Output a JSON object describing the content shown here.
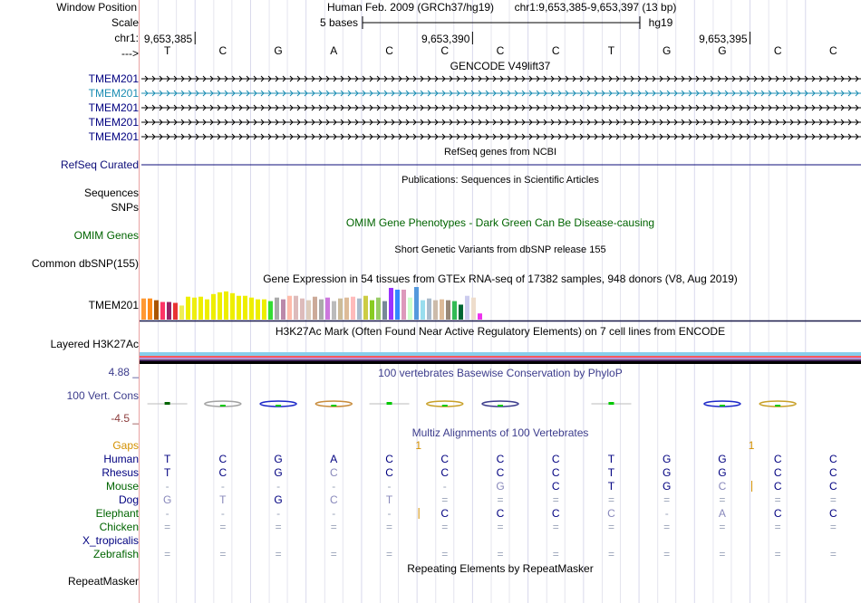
{
  "left_labels": [
    {
      "text": "Window Position",
      "color": "#000000"
    },
    {
      "text": "Scale",
      "color": "#000000"
    },
    {
      "text": "chr1:",
      "color": "#000000"
    },
    {
      "text": "--->",
      "color": "#000000"
    },
    {
      "text": "TMEM201",
      "color": "#000080"
    },
    {
      "text": "TMEM201",
      "color": "#1a8cb2"
    },
    {
      "text": "TMEM201",
      "color": "#000080"
    },
    {
      "text": "TMEM201",
      "color": "#000080"
    },
    {
      "text": "TMEM201",
      "color": "#000080"
    },
    {
      "text": "RefSeq Curated",
      "color": "#0c0c78"
    },
    {
      "text": "Sequences",
      "color": "#000000"
    },
    {
      "text": "SNPs",
      "color": "#000000"
    },
    {
      "text": "OMIM Genes",
      "color": "#006400"
    },
    {
      "text": "Common dbSNP(155)",
      "color": "#000000"
    },
    {
      "text": "TMEM201",
      "color": "#000000"
    },
    {
      "text": "Layered H3K27Ac",
      "color": "#000000"
    },
    {
      "text": "4.88 _",
      "color": "#3c3c8c"
    },
    {
      "text": "100 Vert. Cons",
      "color": "#3c3c8c"
    },
    {
      "text": "-4.5 _",
      "color": "#8c3c3c"
    },
    {
      "text": "Gaps",
      "color": "#d39000"
    },
    {
      "text": "Human",
      "color": "#000080"
    },
    {
      "text": "Rhesus",
      "color": "#000080"
    },
    {
      "text": "Mouse",
      "color": "#006400"
    },
    {
      "text": "Dog",
      "color": "#000080"
    },
    {
      "text": "Elephant",
      "color": "#006400"
    },
    {
      "text": "Chicken",
      "color": "#006400"
    },
    {
      "text": "X_tropicalis",
      "color": "#000080"
    },
    {
      "text": "Zebrafish",
      "color": "#006400"
    },
    {
      "text": "RepeatMasker",
      "color": "#000000"
    }
  ],
  "header": {
    "assembly": "Human Feb. 2009 (GRCh37/hg19)",
    "region": "chr1:9,653,385-9,653,397 (13 bp)",
    "scale_label": "5 bases",
    "db_label": "hg19"
  },
  "ruler_positions": [
    "9,653,385",
    "9,653,390",
    "9,653,395"
  ],
  "bases": [
    "T",
    "C",
    "G",
    "A",
    "C",
    "C",
    "C",
    "C",
    "T",
    "G",
    "G",
    "C",
    "C"
  ],
  "track_titles": {
    "gencode": "GENCODE V49lift37",
    "refseq": "RefSeq genes from NCBI",
    "publications": "Publications: Sequences in Scientific Articles",
    "omim": "OMIM Gene Phenotypes - Dark Green Can Be Disease-causing",
    "dbsnp": "Short Genetic Variants from dbSNP release 155",
    "gtex": "Gene Expression in 54 tissues from GTEx RNA-seq of 17382 samples, 948 donors (V8, Aug 2019)",
    "h3k27ac": "H3K27Ac Mark (Often Found Near Active Regulatory Elements) on 7 cell lines from ENCODE",
    "phylop": "100 vertebrates Basewise Conservation by PhyloP",
    "multiz": "Multiz Alignments of 100 Vertebrates",
    "repeatmasker": "Repeating Elements by RepeatMasker"
  },
  "gene_track_colors": [
    "#000000",
    "#1a8cb2",
    "#000000",
    "#000000",
    "#000000"
  ],
  "gtex": {
    "values": [
      24,
      24,
      22,
      20,
      20,
      19,
      16,
      26,
      25,
      26,
      23,
      29,
      31,
      32,
      30,
      27,
      27,
      25,
      23,
      23,
      21,
      25,
      23,
      27,
      27,
      24,
      22,
      26,
      23,
      25,
      21,
      24,
      25,
      26,
      24,
      27,
      22,
      25,
      21,
      36,
      34,
      34,
      25,
      37,
      22,
      24,
      22,
      23,
      22,
      21,
      17,
      27,
      25,
      7
    ],
    "colors": [
      "#ff9933",
      "#ff8c1a",
      "#aa5500",
      "#ff3366",
      "#992266",
      "#e83333",
      "#eeee55",
      "#eeee00",
      "#eeee11",
      "#eeee00",
      "#eeee00",
      "#eeee00",
      "#eeee00",
      "#eeee00",
      "#eeee00",
      "#eeee00",
      "#eeee00",
      "#eeee00",
      "#eeee00",
      "#eeee00",
      "#33dd33",
      "#aaaaaa",
      "#bb88aa",
      "#ffbbaa",
      "#ddbbbb",
      "#ddbbbb",
      "#ddccbb",
      "#ccaa99",
      "#aaaaaa",
      "#cc77dd",
      "#bbbbbb",
      "#ccbb99",
      "#ddbb99",
      "#ffbbbb",
      "#aabbcc",
      "#cccc44",
      "#88cc22",
      "#99cc66",
      "#778899",
      "#9933ff",
      "#3388ff",
      "#dd99bb",
      "#ccffcc",
      "#5599dd",
      "#99ddee",
      "#aabbcc",
      "#ccbbaa",
      "#ddbb99",
      "#998877",
      "#33bb55",
      "#006633",
      "#ccccee",
      "#eeddcc",
      "#ee33ee"
    ]
  },
  "h3k27ac_colors": [
    "#87ceeb",
    "#ff5a5a",
    "#a78bfa",
    "#bfa0b0",
    "#5b3c7e",
    "#3c2050",
    "#000000"
  ],
  "phylop_bases": [
    {
      "dir": "flat",
      "color": "#006400",
      "ref": "T"
    },
    {
      "dir": "both",
      "color": "#a2a2a2",
      "ref": "C"
    },
    {
      "dir": "both",
      "color": "#1c28c8",
      "ref": "G"
    },
    {
      "dir": "both",
      "color": "#c88c3c",
      "ref": "A"
    },
    {
      "dir": "flat",
      "color": "#00c800",
      "ref": "C"
    },
    {
      "dir": "both",
      "color": "#c8a028",
      "ref": "C"
    },
    {
      "dir": "both",
      "color": "#3c3c8c",
      "ref": "C"
    },
    {
      "dir": "none",
      "color": "#ffffff",
      "ref": "C"
    },
    {
      "dir": "flat",
      "color": "#00c800",
      "ref": "T"
    },
    {
      "dir": "none",
      "color": "#ffffff",
      "ref": "G"
    },
    {
      "dir": "both",
      "color": "#1c28c8",
      "ref": "G"
    },
    {
      "dir": "both",
      "color": "#c8a028",
      "ref": "C"
    },
    {
      "dir": "none",
      "color": "#ffffff",
      "ref": "C"
    }
  ],
  "gaps": [
    "",
    "",
    "",
    "",
    "",
    "1",
    "",
    "",
    "",
    "",
    "",
    "1",
    ""
  ],
  "alignment": {
    "Human": [
      "T",
      "C",
      "G",
      "A",
      "C",
      "C",
      "C",
      "C",
      "T",
      "G",
      "G",
      "C",
      "C"
    ],
    "Rhesus": [
      "T",
      "C",
      "G",
      "C",
      "C",
      "C",
      "C",
      "C",
      "T",
      "G",
      "G",
      "C",
      "C"
    ],
    "Mouse": [
      "-",
      "-",
      "-",
      "-",
      "-",
      "-",
      "G",
      "C",
      "T",
      "G",
      "C",
      "C",
      "C"
    ],
    "Dog": [
      "G",
      "T",
      "G",
      "C",
      "T",
      "=",
      "=",
      "=",
      "=",
      "=",
      "=",
      "=",
      "="
    ],
    "Elephant": [
      "-",
      "-",
      "-",
      "-",
      "-",
      "C",
      "C",
      "C",
      "C",
      "-",
      "A",
      "C",
      "C"
    ],
    "Chicken": [
      "=",
      "=",
      "=",
      "=",
      "=",
      "=",
      "=",
      "=",
      "=",
      "=",
      "=",
      "=",
      "="
    ],
    "X_tropicalis": [
      "",
      "",
      "",
      "",
      "",
      "",
      "",
      "",
      "",
      "",
      "",
      "",
      ""
    ],
    "Zebrafish": [
      "=",
      "=",
      "=",
      "=",
      "=",
      "=",
      "=",
      "=",
      "=",
      "=",
      "=",
      "=",
      "="
    ]
  },
  "alignment_colors": {
    "match": "#000080",
    "mismatch": "#8888bb",
    "gap": "#9aa3b8",
    "insertion": "#d39000"
  },
  "insertion_marks": {
    "Mouse": [
      10
    ],
    "Elephant": [
      4
    ]
  }
}
